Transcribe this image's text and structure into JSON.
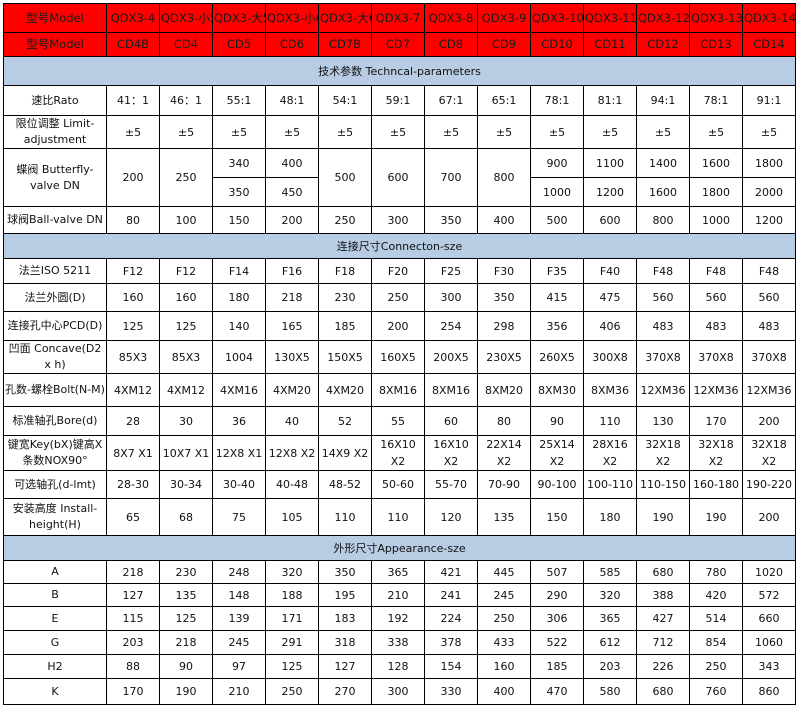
{
  "header": {
    "model_label": "型号Model",
    "models": [
      "QDX3-4",
      "QDX3-小5",
      "QDX3-大5",
      "QDX3-小6",
      "QDX3-大6",
      "QDX3-7",
      "QDX3-8",
      "QDX3-9",
      "QDX3-10",
      "QDX3-11",
      "QDX3-12",
      "QDX3-13",
      "QDX3-14"
    ],
    "model_label2": "型号Model",
    "codes": [
      "CD4B",
      "CD4",
      "CD5",
      "CD6",
      "CD7B",
      "CD7",
      "CD8",
      "CD9",
      "CD10",
      "CD11",
      "CD12",
      "CD13",
      "CD14"
    ]
  },
  "colors": {
    "header_red": "#ff0000",
    "section_blue": "#b8cce4"
  },
  "sections": [
    {
      "title": "技术参数 Techncal-parameters",
      "rows": [
        {
          "label": "速比Rato",
          "h": 30,
          "values": [
            "41：1",
            "46：1",
            "55:1",
            "48:1",
            "54:1",
            "59:1",
            "67:1",
            "65:1",
            "78:1",
            "81:1",
            "94:1",
            "78:1",
            "91:1"
          ]
        },
        {
          "label": "限位调整 Limit-adjustment",
          "h": 33,
          "values": [
            "±5",
            "±5",
            "±5",
            "±5",
            "±5",
            "±5",
            "±5",
            "±5",
            "±5",
            "±5",
            "±5",
            "±5",
            "±5"
          ]
        },
        {
          "label": "蝶阀 Butterfly-valve DN",
          "h": 58,
          "values": [
            "200",
            "250",
            [
              "340",
              "350"
            ],
            [
              "400",
              "450"
            ],
            "500",
            "600",
            "700",
            "800",
            [
              "900",
              "1000"
            ],
            [
              "1100",
              "1200"
            ],
            [
              "1400",
              "1600"
            ],
            [
              "1600",
              "1800"
            ],
            [
              "1800",
              "2000"
            ]
          ]
        },
        {
          "label": "球阀Ball-valve DN",
          "h": 27,
          "values": [
            "80",
            "100",
            "150",
            "200",
            "250",
            "300",
            "350",
            "400",
            "500",
            "600",
            "800",
            "1000",
            "1200"
          ]
        }
      ]
    },
    {
      "title": "连接尺寸Connecton-sze",
      "rows": [
        {
          "label": "法兰ISO 5211",
          "h": 25,
          "values": [
            "F12",
            "F12",
            "F14",
            "F16",
            "F18",
            "F20",
            "F25",
            "F30",
            "F35",
            "F40",
            "F48",
            "F48",
            "F48"
          ]
        },
        {
          "label": "法兰外圆(D)",
          "h": 28,
          "values": [
            "160",
            "160",
            "180",
            "218",
            "230",
            "250",
            "300",
            "350",
            "415",
            "475",
            "560",
            "560",
            "560"
          ]
        },
        {
          "label": "连接孔中心PCD(D)",
          "h": 29,
          "values": [
            "125",
            "125",
            "140",
            "165",
            "185",
            "200",
            "254",
            "298",
            "356",
            "406",
            "483",
            "483",
            "483"
          ]
        },
        {
          "label": "凹面 Concave(D2 x h)",
          "h": 33,
          "values": [
            "85X3",
            "85X3",
            "1004",
            "130X5",
            "150X5",
            "160X5",
            "200X5",
            "230X5",
            "260X5",
            "300X8",
            "370X8",
            "370X8",
            "370X8"
          ]
        },
        {
          "label": "孔数-螺栓Bolt(N-M)",
          "h": 33,
          "values": [
            "4XM12",
            "4XM12",
            "4XM16",
            "4XM20",
            "4XM20",
            "8XM16",
            "8XM16",
            "8XM20",
            "8XM30",
            "8XM36",
            "12XM36",
            "12XM36",
            "12XM36"
          ]
        },
        {
          "label": "标准轴孔Bore(d)",
          "h": 29,
          "values": [
            "28",
            "30",
            "36",
            "40",
            "52",
            "55",
            "60",
            "80",
            "90",
            "110",
            "130",
            "170",
            "200"
          ]
        },
        {
          "label": "键宽Key(bX)键高X条数NOX90°",
          "h": 35,
          "values": [
            "8X7 X1",
            "10X7 X1",
            "12X8 X1",
            "12X8 X2",
            "14X9 X2",
            "16X10 X2",
            "16X10 X2",
            "22X14 X2",
            "25X14 X2",
            "28X16 X2",
            "32X18 X2",
            "32X18 X2",
            "32X18 X2"
          ]
        },
        {
          "label": "可选轴孔(d-lmt)",
          "h": 28,
          "values": [
            "28-30",
            "30-34",
            "30-40",
            "40-48",
            "48-52",
            "50-60",
            "55-70",
            "70-90",
            "90-100",
            "100-110",
            "110-150",
            "160-180",
            "190-220"
          ]
        },
        {
          "label": "安装高度 Install-height(H)",
          "h": 37,
          "values": [
            "65",
            "68",
            "75",
            "105",
            "110",
            "110",
            "120",
            "135",
            "150",
            "180",
            "190",
            "190",
            "200"
          ]
        }
      ]
    },
    {
      "title": "外形尺寸Appearance-sze",
      "rows": [
        {
          "label": "A",
          "h": 23,
          "values": [
            "218",
            "230",
            "248",
            "320",
            "350",
            "365",
            "421",
            "445",
            "507",
            "585",
            "680",
            "780",
            "1020"
          ]
        },
        {
          "label": "B",
          "h": 23,
          "values": [
            "127",
            "135",
            "148",
            "188",
            "195",
            "210",
            "241",
            "245",
            "290",
            "320",
            "388",
            "420",
            "572"
          ]
        },
        {
          "label": "E",
          "h": 24,
          "values": [
            "115",
            "125",
            "139",
            "171",
            "183",
            "192",
            "224",
            "250",
            "306",
            "365",
            "427",
            "514",
            "660"
          ]
        },
        {
          "label": "G",
          "h": 24,
          "values": [
            "203",
            "218",
            "245",
            "291",
            "318",
            "338",
            "378",
            "433",
            "522",
            "612",
            "712",
            "854",
            "1060"
          ]
        },
        {
          "label": "H2",
          "h": 24,
          "values": [
            "88",
            "90",
            "97",
            "125",
            "127",
            "128",
            "154",
            "160",
            "185",
            "203",
            "226",
            "250",
            "343"
          ]
        },
        {
          "label": "K",
          "h": 26,
          "values": [
            "170",
            "190",
            "210",
            "250",
            "270",
            "300",
            "330",
            "400",
            "470",
            "580",
            "680",
            "760",
            "860"
          ]
        }
      ]
    }
  ]
}
